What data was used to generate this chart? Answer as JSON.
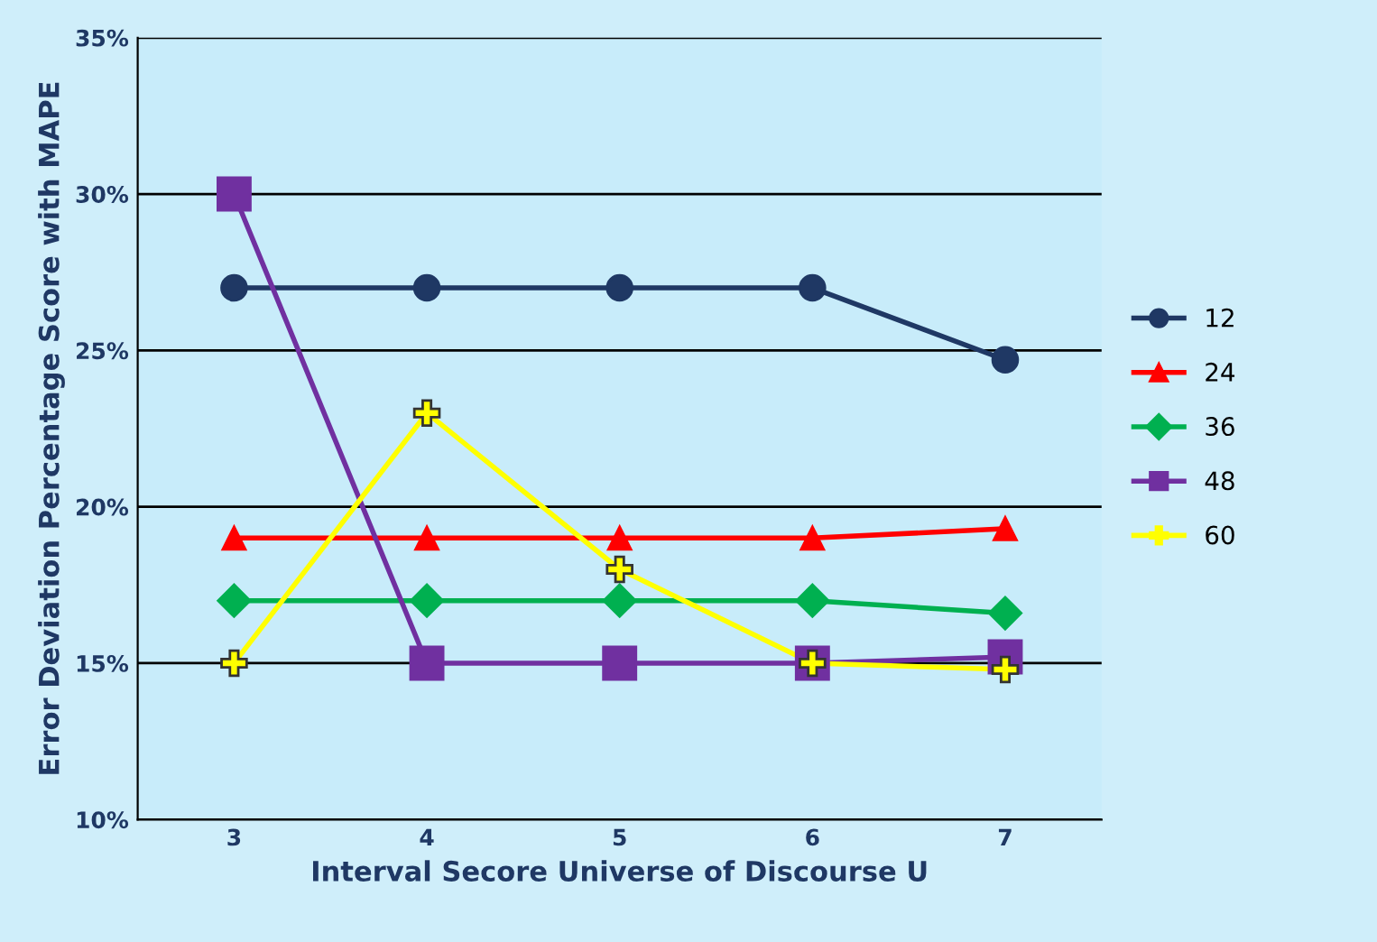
{
  "chart_data": {
    "type": "line",
    "xlabel": "Interval Secore Universe of Discourse U",
    "ylabel": "Error Deviation Percentage Score with MAPE",
    "categories": [
      "3",
      "4",
      "5",
      "6",
      "7"
    ],
    "series": [
      {
        "name": "12",
        "color": "#1f3864",
        "marker": "circle",
        "values": [
          27,
          27,
          27,
          27,
          24.7
        ]
      },
      {
        "name": "24",
        "color": "#ff0000",
        "marker": "triangle",
        "values": [
          19,
          19,
          19,
          19,
          19.3
        ]
      },
      {
        "name": "36",
        "color": "#00b050",
        "marker": "diamond",
        "values": [
          17,
          17,
          17,
          17,
          16.6
        ]
      },
      {
        "name": "48",
        "color": "#7030a0",
        "marker": "square",
        "values": [
          30,
          15,
          15,
          15,
          15.2
        ]
      },
      {
        "name": "60",
        "color": "#ffff00",
        "marker": "cross",
        "values": [
          15,
          23,
          18,
          15,
          14.8
        ]
      }
    ],
    "ylim": [
      10,
      35
    ],
    "yticks": [
      {
        "value": 10,
        "label": "10%"
      },
      {
        "value": 15,
        "label": "15%"
      },
      {
        "value": 20,
        "label": "20%"
      },
      {
        "value": 25,
        "label": "25%"
      },
      {
        "value": 30,
        "label": "30%"
      },
      {
        "value": 35,
        "label": "35%"
      }
    ],
    "grid": "y",
    "legend": "right",
    "line_style": "solid"
  }
}
